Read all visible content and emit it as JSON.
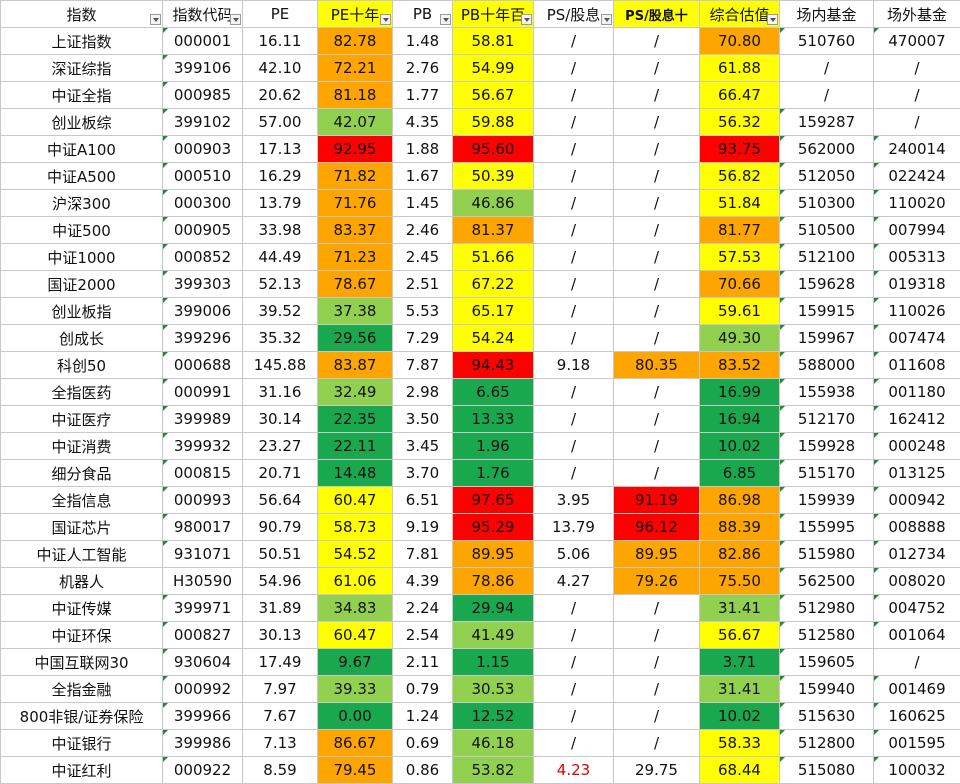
{
  "columns": [
    "指数",
    "指数代码",
    "PE",
    "PE十年",
    "PB",
    "PB十年百",
    "PS/股息",
    "PS/股息十",
    "综合估值",
    "场内基金",
    "场外基金"
  ],
  "rows": [
    {
      "name": "上证指数",
      "code": "000001",
      "pe": "16.11",
      "pe10": "82.78",
      "pe10_c": "orange",
      "pb": "1.48",
      "pb10": "58.81",
      "pb10_c": "yellow",
      "ps": "/",
      "ps10": "/",
      "ps10_c": "",
      "score": "70.80",
      "score_c": "orange",
      "etf": "510760",
      "otc": "470007"
    },
    {
      "name": "深证综指",
      "code": "399106",
      "pe": "42.10",
      "pe10": "72.21",
      "pe10_c": "orange",
      "pb": "2.76",
      "pb10": "54.99",
      "pb10_c": "yellow",
      "ps": "/",
      "ps10": "/",
      "ps10_c": "",
      "score": "61.88",
      "score_c": "yellow",
      "etf": "/",
      "otc": "/"
    },
    {
      "name": "中证全指",
      "code": "000985",
      "pe": "20.62",
      "pe10": "81.18",
      "pe10_c": "orange",
      "pb": "1.77",
      "pb10": "56.67",
      "pb10_c": "yellow",
      "ps": "/",
      "ps10": "/",
      "ps10_c": "",
      "score": "66.47",
      "score_c": "yellow",
      "etf": "/",
      "otc": "/"
    },
    {
      "name": "创业板综",
      "code": "399102",
      "pe": "57.00",
      "pe10": "42.07",
      "pe10_c": "lgreen",
      "pb": "4.35",
      "pb10": "59.88",
      "pb10_c": "yellow",
      "ps": "/",
      "ps10": "/",
      "ps10_c": "",
      "score": "56.32",
      "score_c": "yellow",
      "etf": "159287",
      "otc": "/"
    },
    {
      "name": "中证A100",
      "code": "000903",
      "pe": "17.13",
      "pe10": "92.95",
      "pe10_c": "red",
      "pb": "1.88",
      "pb10": "95.60",
      "pb10_c": "red",
      "ps": "/",
      "ps10": "/",
      "ps10_c": "",
      "score": "93.75",
      "score_c": "red",
      "etf": "562000",
      "otc": "240014"
    },
    {
      "name": "中证A500",
      "code": "000510",
      "pe": "16.29",
      "pe10": "71.82",
      "pe10_c": "orange",
      "pb": "1.67",
      "pb10": "50.39",
      "pb10_c": "yellow",
      "ps": "/",
      "ps10": "/",
      "ps10_c": "",
      "score": "56.82",
      "score_c": "yellow",
      "etf": "512050",
      "otc": "022424"
    },
    {
      "name": "沪深300",
      "code": "000300",
      "pe": "13.79",
      "pe10": "71.76",
      "pe10_c": "orange",
      "pb": "1.45",
      "pb10": "46.86",
      "pb10_c": "lgreen",
      "ps": "/",
      "ps10": "/",
      "ps10_c": "",
      "score": "51.84",
      "score_c": "yellow",
      "etf": "510300",
      "otc": "110020"
    },
    {
      "name": "中证500",
      "code": "000905",
      "pe": "33.98",
      "pe10": "83.37",
      "pe10_c": "orange",
      "pb": "2.46",
      "pb10": "81.37",
      "pb10_c": "orange",
      "ps": "/",
      "ps10": "/",
      "ps10_c": "",
      "score": "81.77",
      "score_c": "orange",
      "etf": "510500",
      "otc": "007994"
    },
    {
      "name": "中证1000",
      "code": "000852",
      "pe": "44.49",
      "pe10": "71.23",
      "pe10_c": "orange",
      "pb": "2.45",
      "pb10": "51.66",
      "pb10_c": "yellow",
      "ps": "/",
      "ps10": "/",
      "ps10_c": "",
      "score": "57.53",
      "score_c": "yellow",
      "etf": "512100",
      "otc": "005313"
    },
    {
      "name": "国证2000",
      "code": "399303",
      "pe": "52.13",
      "pe10": "78.67",
      "pe10_c": "orange",
      "pb": "2.51",
      "pb10": "67.22",
      "pb10_c": "yellow",
      "ps": "/",
      "ps10": "/",
      "ps10_c": "",
      "score": "70.66",
      "score_c": "orange",
      "etf": "159628",
      "otc": "019318"
    },
    {
      "name": "创业板指",
      "code": "399006",
      "pe": "39.52",
      "pe10": "37.38",
      "pe10_c": "lgreen",
      "pb": "5.53",
      "pb10": "65.17",
      "pb10_c": "yellow",
      "ps": "/",
      "ps10": "/",
      "ps10_c": "",
      "score": "59.61",
      "score_c": "yellow",
      "etf": "159915",
      "otc": "110026"
    },
    {
      "name": "创成长",
      "code": "399296",
      "pe": "35.32",
      "pe10": "29.56",
      "pe10_c": "green",
      "pb": "7.29",
      "pb10": "54.24",
      "pb10_c": "yellow",
      "ps": "/",
      "ps10": "/",
      "ps10_c": "",
      "score": "49.30",
      "score_c": "lgreen",
      "etf": "159967",
      "otc": "007474"
    },
    {
      "name": "科创50",
      "code": "000688",
      "pe": "145.88",
      "pe10": "83.87",
      "pe10_c": "orange",
      "pb": "7.87",
      "pb10": "94.43",
      "pb10_c": "red",
      "ps": "9.18",
      "ps10": "80.35",
      "ps10_c": "orange",
      "score": "83.52",
      "score_c": "orange",
      "etf": "588000",
      "otc": "011608"
    },
    {
      "name": "全指医药",
      "code": "000991",
      "pe": "31.16",
      "pe10": "32.49",
      "pe10_c": "lgreen",
      "pb": "2.98",
      "pb10": "6.65",
      "pb10_c": "green",
      "ps": "/",
      "ps10": "/",
      "ps10_c": "",
      "score": "16.99",
      "score_c": "green",
      "etf": "155938",
      "otc": "001180"
    },
    {
      "name": "中证医疗",
      "code": "399989",
      "pe": "30.14",
      "pe10": "22.35",
      "pe10_c": "green",
      "pb": "3.50",
      "pb10": "13.33",
      "pb10_c": "green",
      "ps": "/",
      "ps10": "/",
      "ps10_c": "",
      "score": "16.94",
      "score_c": "green",
      "etf": "512170",
      "otc": "162412"
    },
    {
      "name": "中证消费",
      "code": "399932",
      "pe": "23.27",
      "pe10": "22.11",
      "pe10_c": "green",
      "pb": "3.45",
      "pb10": "1.96",
      "pb10_c": "green",
      "ps": "/",
      "ps10": "/",
      "ps10_c": "",
      "score": "10.02",
      "score_c": "green",
      "etf": "159928",
      "otc": "000248"
    },
    {
      "name": "细分食品",
      "code": "000815",
      "pe": "20.71",
      "pe10": "14.48",
      "pe10_c": "green",
      "pb": "3.70",
      "pb10": "1.76",
      "pb10_c": "green",
      "ps": "/",
      "ps10": "/",
      "ps10_c": "",
      "score": "6.85",
      "score_c": "green",
      "etf": "515170",
      "otc": "013125"
    },
    {
      "name": "全指信息",
      "code": "000993",
      "pe": "56.64",
      "pe10": "60.47",
      "pe10_c": "yellow",
      "pb": "6.51",
      "pb10": "97.65",
      "pb10_c": "red",
      "ps": "3.95",
      "ps10": "91.19",
      "ps10_c": "red",
      "score": "86.98",
      "score_c": "orange",
      "etf": "159939",
      "otc": "000942"
    },
    {
      "name": "国证芯片",
      "code": "980017",
      "pe": "90.79",
      "pe10": "58.73",
      "pe10_c": "yellow",
      "pb": "9.19",
      "pb10": "95.29",
      "pb10_c": "red",
      "ps": "13.79",
      "ps10": "96.12",
      "ps10_c": "red",
      "score": "88.39",
      "score_c": "orange",
      "etf": "155995",
      "otc": "008888"
    },
    {
      "name": "中证人工智能",
      "code": "931071",
      "pe": "50.51",
      "pe10": "54.52",
      "pe10_c": "yellow",
      "pb": "7.81",
      "pb10": "89.95",
      "pb10_c": "orange",
      "ps": "5.06",
      "ps10": "89.95",
      "ps10_c": "orange",
      "score": "82.86",
      "score_c": "orange",
      "etf": "515980",
      "otc": "012734"
    },
    {
      "name": "机器人",
      "code": "H30590",
      "pe": "54.96",
      "pe10": "61.06",
      "pe10_c": "yellow",
      "pb": "4.39",
      "pb10": "78.86",
      "pb10_c": "orange",
      "ps": "4.27",
      "ps10": "79.26",
      "ps10_c": "orange",
      "score": "75.50",
      "score_c": "orange",
      "etf": "562500",
      "otc": "008020"
    },
    {
      "name": "中证传媒",
      "code": "399971",
      "pe": "31.89",
      "pe10": "34.83",
      "pe10_c": "lgreen",
      "pb": "2.24",
      "pb10": "29.94",
      "pb10_c": "green",
      "ps": "/",
      "ps10": "/",
      "ps10_c": "",
      "score": "31.41",
      "score_c": "lgreen",
      "etf": "512980",
      "otc": "004752"
    },
    {
      "name": "中证环保",
      "code": "000827",
      "pe": "30.13",
      "pe10": "60.47",
      "pe10_c": "yellow",
      "pb": "2.54",
      "pb10": "41.49",
      "pb10_c": "lgreen",
      "ps": "/",
      "ps10": "/",
      "ps10_c": "",
      "score": "56.67",
      "score_c": "yellow",
      "etf": "512580",
      "otc": "001064"
    },
    {
      "name": "中国互联网30",
      "code": "930604",
      "pe": "17.49",
      "pe10": "9.67",
      "pe10_c": "green",
      "pb": "2.11",
      "pb10": "1.15",
      "pb10_c": "green",
      "ps": "/",
      "ps10": "/",
      "ps10_c": "",
      "score": "3.71",
      "score_c": "green",
      "etf": "159605",
      "otc": "/"
    },
    {
      "name": "全指金融",
      "code": "000992",
      "pe": "7.97",
      "pe10": "39.33",
      "pe10_c": "lgreen",
      "pb": "0.79",
      "pb10": "30.53",
      "pb10_c": "lgreen",
      "ps": "/",
      "ps10": "/",
      "ps10_c": "",
      "score": "31.41",
      "score_c": "lgreen",
      "etf": "159940",
      "otc": "001469"
    },
    {
      "name": "800非银/证券保险",
      "code": "399966",
      "pe": "7.67",
      "pe10": "0.00",
      "pe10_c": "green",
      "pb": "1.24",
      "pb10": "12.52",
      "pb10_c": "green",
      "ps": "/",
      "ps10": "/",
      "ps10_c": "",
      "score": "10.02",
      "score_c": "green",
      "etf": "515630",
      "otc": "160625"
    },
    {
      "name": "中证银行",
      "code": "399986",
      "pe": "7.13",
      "pe10": "86.67",
      "pe10_c": "orange",
      "pb": "0.69",
      "pb10": "46.18",
      "pb10_c": "lgreen",
      "ps": "/",
      "ps10": "/",
      "ps10_c": "",
      "score": "58.33",
      "score_c": "yellow",
      "etf": "512800",
      "otc": "001595"
    },
    {
      "name": "中证红利",
      "code": "000922",
      "pe": "8.59",
      "pe10": "79.45",
      "pe10_c": "orange",
      "pb": "0.86",
      "pb10": "53.82",
      "pb10_c": "lgreen",
      "ps": "4.23",
      "ps_red": true,
      "ps10": "29.75",
      "ps10_c": "",
      "score": "68.44",
      "score_c": "yellow",
      "etf": "515080",
      "otc": "100032"
    }
  ]
}
